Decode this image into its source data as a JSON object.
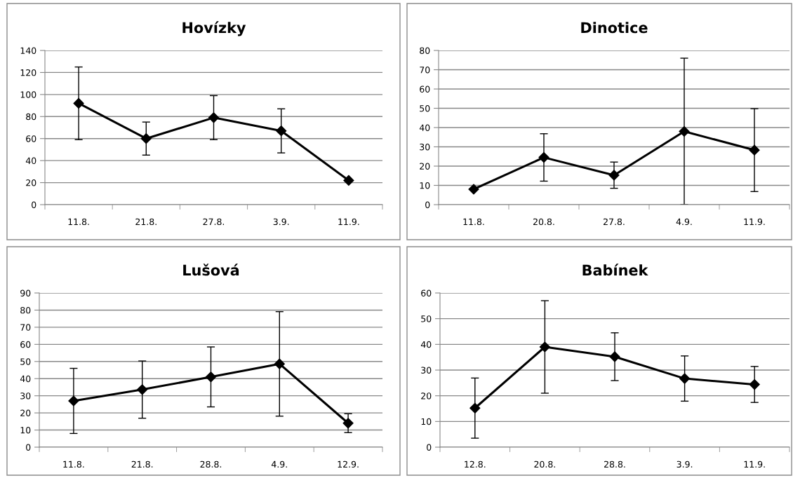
{
  "chart_data": [
    {
      "type": "line",
      "title": "Hovízky",
      "categories": [
        "11.8.",
        "21.8.",
        "27.8.",
        "3.9.",
        "11.9."
      ],
      "series": [
        {
          "color": "#000000",
          "values": [
            92,
            60,
            79,
            67,
            22
          ],
          "errors": [
            33,
            15,
            20,
            20,
            null
          ]
        }
      ],
      "ylim": [
        0,
        140
      ],
      "yticks": [
        0,
        20,
        40,
        60,
        80,
        100,
        120,
        140
      ],
      "grid": "y",
      "marker": "diamond",
      "line_style": "solid"
    },
    {
      "type": "line",
      "title": "Dinotice",
      "categories": [
        "11.8.",
        "20.8.",
        "27.8.",
        "4.9.",
        "11.9."
      ],
      "series": [
        {
          "color": "#000000",
          "values": [
            8,
            24.5,
            15.3,
            38,
            28.3
          ],
          "errors": [
            null,
            12.3,
            6.8,
            38,
            21.5
          ]
        }
      ],
      "ylim": [
        0,
        80
      ],
      "yticks": [
        0,
        10,
        20,
        30,
        40,
        50,
        60,
        70,
        80
      ],
      "grid": "y",
      "marker": "diamond",
      "line_style": "solid"
    },
    {
      "type": "line",
      "title": "Lušová",
      "categories": [
        "11.8.",
        "21.8.",
        "28.8.",
        "4.9.",
        "12.9."
      ],
      "series": [
        {
          "color": "#000000",
          "values": [
            27,
            33.6,
            41,
            48.6,
            14
          ],
          "errors": [
            19,
            16.7,
            17.5,
            30.5,
            5.5
          ]
        }
      ],
      "ylim": [
        0,
        90
      ],
      "yticks": [
        0,
        10,
        20,
        30,
        40,
        50,
        60,
        70,
        80,
        90
      ],
      "grid": "y",
      "marker": "diamond",
      "line_style": "solid"
    },
    {
      "type": "line",
      "title": "Babínek",
      "categories": [
        "12.8.",
        "20.8.",
        "28.8.",
        "3.9.",
        "11.9."
      ],
      "series": [
        {
          "color": "#000000",
          "values": [
            15.2,
            39,
            35.2,
            26.7,
            24.4
          ],
          "errors": [
            11.7,
            18,
            9.3,
            8.8,
            7
          ]
        }
      ],
      "ylim": [
        0,
        60
      ],
      "yticks": [
        0,
        10,
        20,
        30,
        40,
        50,
        60
      ],
      "grid": "y",
      "marker": "diamond",
      "line_style": "solid"
    }
  ]
}
